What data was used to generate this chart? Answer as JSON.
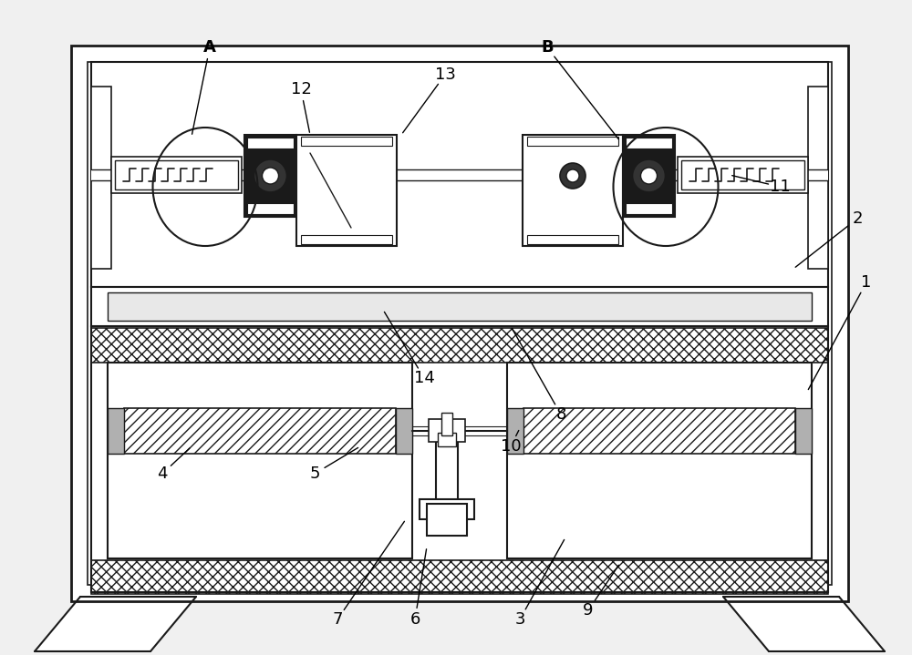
{
  "figsize": [
    10.0,
    7.19
  ],
  "dpi": 100,
  "bg_color": "#f0f0f0",
  "lc": "#1a1a1a",
  "dark": "#1a1a1a",
  "white": "#ffffff",
  "gray_light": "#e0e0e0"
}
